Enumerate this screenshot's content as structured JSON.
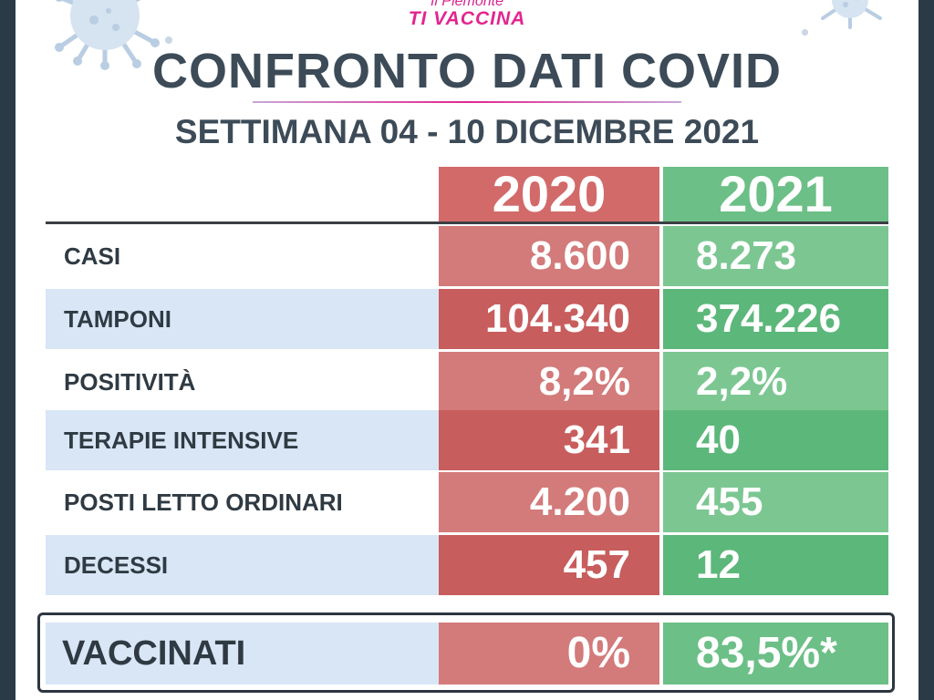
{
  "logo": {
    "line1": "Il Piemonte",
    "line2": "TI VACCINA"
  },
  "title": "CONFRONTO DATI COVID",
  "subtitle": "SETTIMANA 04 - 10 DICEMBRE 2021",
  "columns": [
    "2020",
    "2021"
  ],
  "rows": [
    {
      "label": "CASI",
      "v2020": "8.600",
      "v2021": "8.273"
    },
    {
      "label": "TAMPONI",
      "v2020": "104.340",
      "v2021": "374.226"
    },
    {
      "label": "POSITIVITÀ",
      "v2020": "8,2%",
      "v2021": "2,2%"
    },
    {
      "label": "TERAPIE INTENSIVE",
      "v2020": "341",
      "v2021": "40"
    },
    {
      "label": "POSTI LETTO ORDINARI",
      "v2020": "4.200",
      "v2021": "455"
    },
    {
      "label": "DECESSI",
      "v2020": "457",
      "v2021": "12"
    }
  ],
  "vaccinati": {
    "label": "VACCINATI",
    "v2020": "0%",
    "v2021": "83,5%*"
  },
  "colors": {
    "header_2020": "#d26a6a",
    "header_2021": "#6cbf86",
    "title_text": "#3c4b57",
    "brand_pink": "#e3258f",
    "label_band": "#d8e6f6"
  },
  "icons": [
    "virus-icon-left",
    "virus-icon-right"
  ]
}
